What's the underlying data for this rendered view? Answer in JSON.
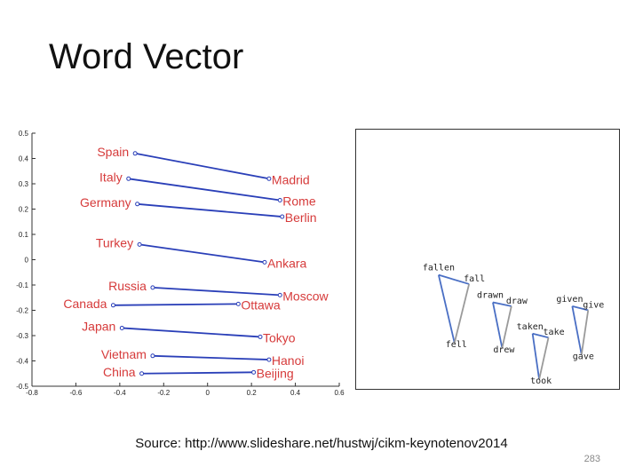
{
  "slide": {
    "title": "Word Vector",
    "source": "Source: http://www.slideshare.net/hustwj/cikm-keynotenov2014",
    "page_number": "283"
  },
  "colors": {
    "country_line": "#2a3fb8",
    "country_label": "#d63a3a",
    "verb_line_blue": "#4a6fc4",
    "verb_line_gray": "#9a9a9a",
    "axis": "#333333",
    "verb_label": "#222222"
  },
  "chart_data": [
    {
      "type": "scatter",
      "subtype": "pairs",
      "xlim": [
        -0.8,
        0.6
      ],
      "ylim": [
        -0.5,
        0.5
      ],
      "x_ticks": [
        "-0.8",
        "-0.6",
        "-0.4",
        "-0.2",
        "0",
        "0.2",
        "0.4",
        "0.6"
      ],
      "y_ticks": [
        "-0.5",
        "-0.4",
        "-0.3",
        "-0.2",
        "-0.1",
        "0",
        "0.1",
        "0.2",
        "0.3",
        "0.4",
        "0.5"
      ],
      "pairs": [
        {
          "country": "Spain",
          "cx": -0.33,
          "cy": 0.42,
          "capital": "Madrid",
          "kx": 0.28,
          "ky": 0.32
        },
        {
          "country": "Italy",
          "cx": -0.36,
          "cy": 0.32,
          "capital": "Rome",
          "kx": 0.33,
          "ky": 0.235
        },
        {
          "country": "Germany",
          "cx": -0.32,
          "cy": 0.22,
          "capital": "Berlin",
          "kx": 0.34,
          "ky": 0.17
        },
        {
          "country": "Turkey",
          "cx": -0.31,
          "cy": 0.06,
          "capital": "Ankara",
          "kx": 0.26,
          "ky": -0.01
        },
        {
          "country": "Russia",
          "cx": -0.25,
          "cy": -0.11,
          "capital": "Moscow",
          "kx": 0.33,
          "ky": -0.14
        },
        {
          "country": "Canada",
          "cx": -0.43,
          "cy": -0.18,
          "capital": "Ottawa",
          "kx": 0.14,
          "ky": -0.175
        },
        {
          "country": "Japan",
          "cx": -0.39,
          "cy": -0.27,
          "capital": "Tokyo",
          "kx": 0.24,
          "ky": -0.305
        },
        {
          "country": "Vietnam",
          "cx": -0.25,
          "cy": -0.38,
          "capital": "Hanoi",
          "kx": 0.28,
          "ky": -0.395
        },
        {
          "country": "China",
          "cx": -0.3,
          "cy": -0.45,
          "capital": "Beijing",
          "kx": 0.21,
          "ky": -0.445
        }
      ]
    },
    {
      "type": "scatter",
      "subtype": "verb-tense-triangles",
      "groups": [
        {
          "base": {
            "word": "fall",
            "x": 0.43,
            "y": 0.595
          },
          "past": {
            "word": "fell",
            "x": 0.375,
            "y": 0.82
          },
          "participle": {
            "word": "fallen",
            "x": 0.315,
            "y": 0.56
          }
        },
        {
          "base": {
            "word": "draw",
            "x": 0.59,
            "y": 0.68
          },
          "past": {
            "word": "drew",
            "x": 0.555,
            "y": 0.84
          },
          "participle": {
            "word": "drawn",
            "x": 0.52,
            "y": 0.665
          }
        },
        {
          "base": {
            "word": "take",
            "x": 0.73,
            "y": 0.8
          },
          "past": {
            "word": "took",
            "x": 0.695,
            "y": 0.96
          },
          "participle": {
            "word": "taken",
            "x": 0.67,
            "y": 0.785
          }
        },
        {
          "base": {
            "word": "give",
            "x": 0.88,
            "y": 0.695
          },
          "past": {
            "word": "gave",
            "x": 0.855,
            "y": 0.865
          },
          "participle": {
            "word": "given",
            "x": 0.82,
            "y": 0.68
          }
        }
      ]
    }
  ]
}
